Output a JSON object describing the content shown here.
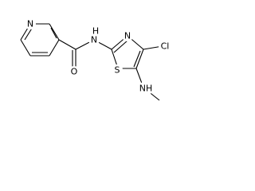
{
  "atoms": [
    {
      "label": "N"
    },
    {
      "label": "O"
    },
    {
      "label": "N"
    },
    {
      "label": "H"
    },
    {
      "label": "N"
    },
    {
      "label": "S"
    },
    {
      "label": "Cl"
    },
    {
      "label": "NH"
    }
  ]
}
